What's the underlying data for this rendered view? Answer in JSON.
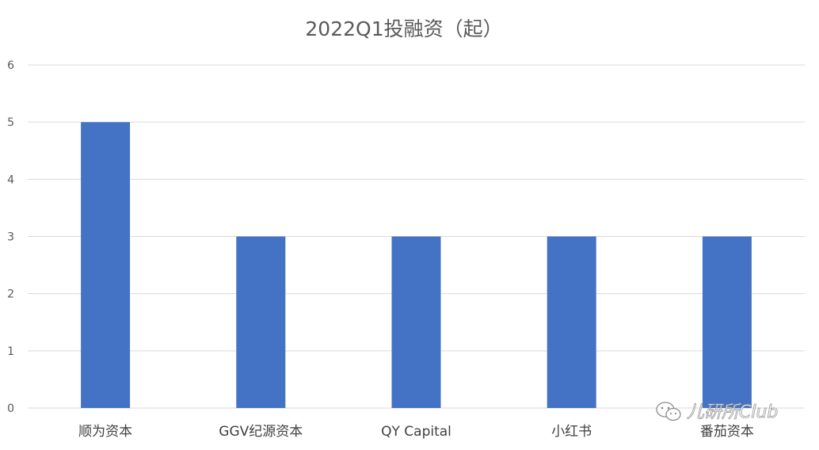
{
  "chart_data": {
    "type": "bar",
    "title": "2022Q1投融资（起）",
    "categories": [
      "顺为资本",
      "GGV纪源资本",
      "QY Capital",
      "小红书",
      "番茄资本"
    ],
    "series": [
      {
        "values": [
          5,
          3,
          3,
          3,
          3
        ]
      }
    ],
    "xlabel": "",
    "ylabel": "",
    "ylim": [
      0,
      6
    ],
    "yticks": [
      0,
      1,
      2,
      3,
      4,
      5,
      6
    ],
    "grid": true,
    "legend": "none",
    "bar_color": "#4472C4",
    "grid_color": "#D9D9D9"
  },
  "watermark": {
    "text": "儿研所Club",
    "icon": "wechat-icon"
  }
}
